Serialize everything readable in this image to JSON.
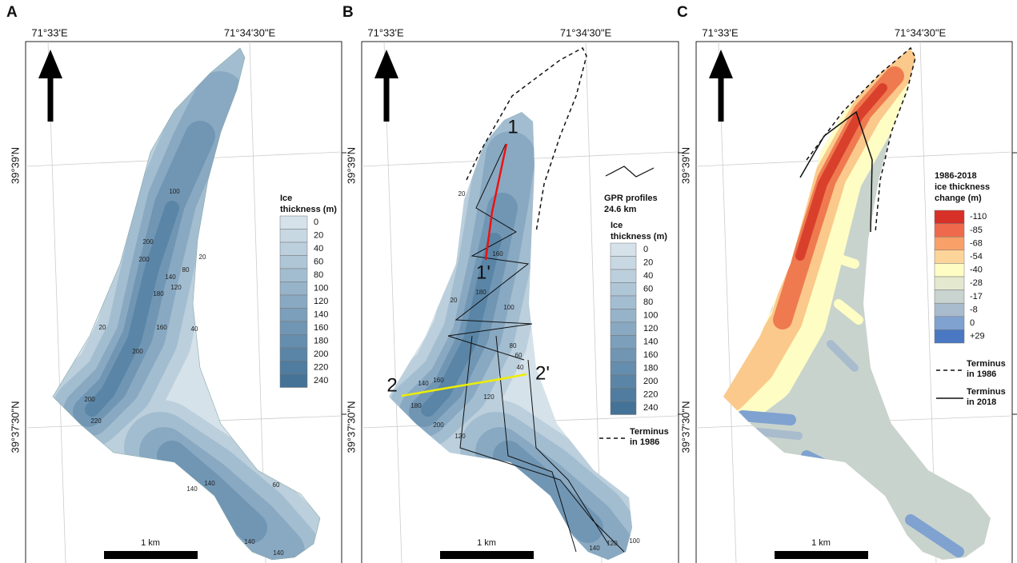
{
  "panels": [
    {
      "label": "A",
      "longitudes": [
        "71°33'E",
        "71°34'30\"E"
      ],
      "latitudes": [
        "39°39'N",
        "39°37'30\"N"
      ],
      "legend": {
        "title": [
          "Ice",
          "thickness (m)"
        ],
        "labels": [
          "0",
          "20",
          "40",
          "60",
          "80",
          "100",
          "120",
          "140",
          "160",
          "180",
          "200",
          "220",
          "240"
        ],
        "colors": [
          "#d5e2ea",
          "#c8d8e3",
          "#bccfdc",
          "#afc6d6",
          "#a3bdd0",
          "#96b3c9",
          "#89a9c2",
          "#7c9fbb",
          "#7096b4",
          "#658dad",
          "#5a85a6",
          "#4f7c9f",
          "#457398"
        ]
      },
      "contour_labels": [
        "100",
        "200",
        "200",
        "20",
        "140",
        "80",
        "120",
        "180",
        "160",
        "40",
        "20",
        "200",
        "200",
        "220",
        "140",
        "140",
        "60",
        "140",
        "140"
      ],
      "scale_bar": "1 km"
    },
    {
      "label": "B",
      "longitudes": [
        "71°33'E",
        "71°34'30\"E"
      ],
      "latitudes": [
        "39°39'N",
        "39°37'30\"N"
      ],
      "legend": {
        "title": [
          "Ice",
          "thickness (m)"
        ],
        "labels": [
          "0",
          "20",
          "40",
          "60",
          "80",
          "100",
          "120",
          "140",
          "160",
          "180",
          "200",
          "220",
          "240"
        ],
        "colors": [
          "#d5e2ea",
          "#c8d8e3",
          "#bccfdc",
          "#afc6d6",
          "#a3bdd0",
          "#96b3c9",
          "#89a9c2",
          "#7c9fbb",
          "#7096b4",
          "#658dad",
          "#5a85a6",
          "#4f7c9f",
          "#457398"
        ]
      },
      "contour_labels": [
        "20",
        "160",
        "180",
        "20",
        "100",
        "80",
        "60",
        "40",
        "140",
        "160",
        "120",
        "180",
        "200",
        "120",
        "100",
        "120",
        "140"
      ],
      "profile_labels": [
        "1",
        "1'",
        "2",
        "2'"
      ],
      "gpr_profiles": [
        "GPR profiles",
        "24.6 km"
      ],
      "terminus": [
        [
          "Terminus",
          "in 1986"
        ]
      ],
      "scale_bar": "1 km"
    },
    {
      "label": "C",
      "longitudes": [
        "71°33'E",
        "71°34'30\"E"
      ],
      "latitudes": [
        "39°39'N",
        "39°37'30\"N"
      ],
      "legend": {
        "title": [
          "1986-2018",
          "ice thickness",
          "change (m)"
        ],
        "labels": [
          "-110",
          "-85",
          "-68",
          "-54",
          "-40",
          "-28",
          "-17",
          "-8",
          "0",
          "+29"
        ],
        "colors": [
          "#d73027",
          "#ef6a4c",
          "#f8a068",
          "#fdd49a",
          "#fefdc4",
          "#e3e8cf",
          "#c9d3cf",
          "#a8bccd",
          "#7fa2d0",
          "#4a78c2"
        ]
      },
      "contour_labels": [],
      "terminus": [
        [
          "Terminus",
          "in 1986"
        ],
        [
          "Terminus",
          "in 2018"
        ]
      ],
      "scale_bar": "1 km"
    }
  ]
}
